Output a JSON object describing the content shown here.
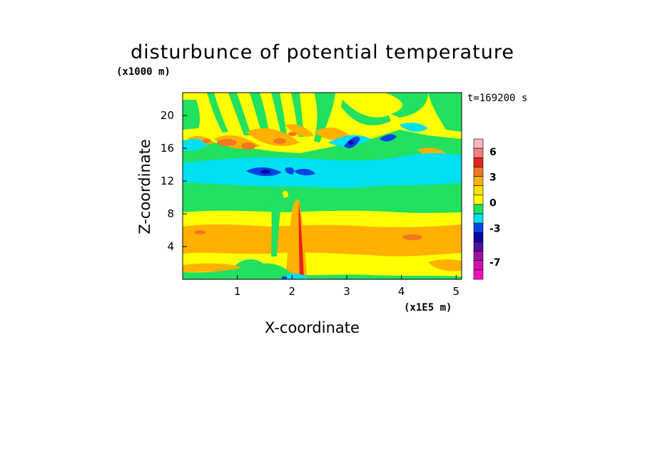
{
  "chart_data": {
    "type": "heatmap",
    "title": "disturbunce of potential temperature",
    "time_label": "t=169200 s",
    "xlabel": "X-coordinate",
    "x_unit": "(x1E5 m)",
    "ylabel": "Z-coordinate",
    "y_unit": "(x1000 m)",
    "xlim": [
      0,
      5.1
    ],
    "ylim": [
      0,
      22.8
    ],
    "x_ticks": [
      "1",
      "2",
      "3",
      "4",
      "5"
    ],
    "y_ticks": [
      "4",
      "8",
      "12",
      "16",
      "20"
    ],
    "colorbar": {
      "labels": [
        "6",
        "3",
        "0",
        "-3",
        "-7"
      ],
      "label_values": [
        6,
        3,
        0,
        -3,
        -7
      ],
      "colors": [
        "#f4b8b8",
        "#f08080",
        "#e8221c",
        "#f07820",
        "#ffb000",
        "#f8e000",
        "#ffff00",
        "#20e060",
        "#00e0f0",
        "#0044e8",
        "#0a0aa0",
        "#5010a0",
        "#a010a0",
        "#d010b0",
        "#f010c0"
      ]
    },
    "field_description_bands": [
      {
        "z_range": [
          0,
          0.4
        ],
        "value_class": "near 0 to -1"
      },
      {
        "z_range": [
          0.4,
          8
        ],
        "value_class": "0 to 2"
      },
      {
        "z_range": [
          8,
          12.5
        ],
        "value_class": "about 0"
      },
      {
        "z_range": [
          12.5,
          15
        ],
        "value_class": "-1 with pockets of -3"
      },
      {
        "z_range": [
          15,
          19
        ],
        "value_class": "1 to 3"
      },
      {
        "z_range": [
          19,
          22.8
        ],
        "value_class": "mixed 0 to 1"
      }
    ]
  }
}
